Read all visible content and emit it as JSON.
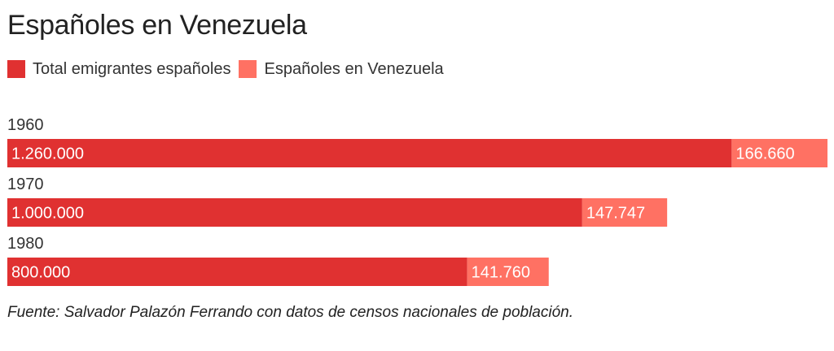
{
  "chart_data": {
    "type": "bar",
    "orientation": "horizontal",
    "stacked": true,
    "title": "Españoles en Venezuela",
    "categories": [
      "1960",
      "1970",
      "1980"
    ],
    "series": [
      {
        "name": "Total emigrantes españoles",
        "color": "#e03131",
        "values": [
          1260000,
          1000000,
          800000
        ],
        "labels": [
          "1.260.000",
          "1.000.000",
          "800.000"
        ]
      },
      {
        "name": "Españoles en Venezuela",
        "color": "#ff7163",
        "values": [
          166660,
          147747,
          141760
        ],
        "labels": [
          "166.660",
          "147.747",
          "141.760"
        ]
      }
    ],
    "xlim": [
      0,
      1426660
    ],
    "legend_position": "top-left",
    "grid": false
  },
  "source": "Fuente: Salvador Palazón Ferrando con datos de censos nacionales de población."
}
